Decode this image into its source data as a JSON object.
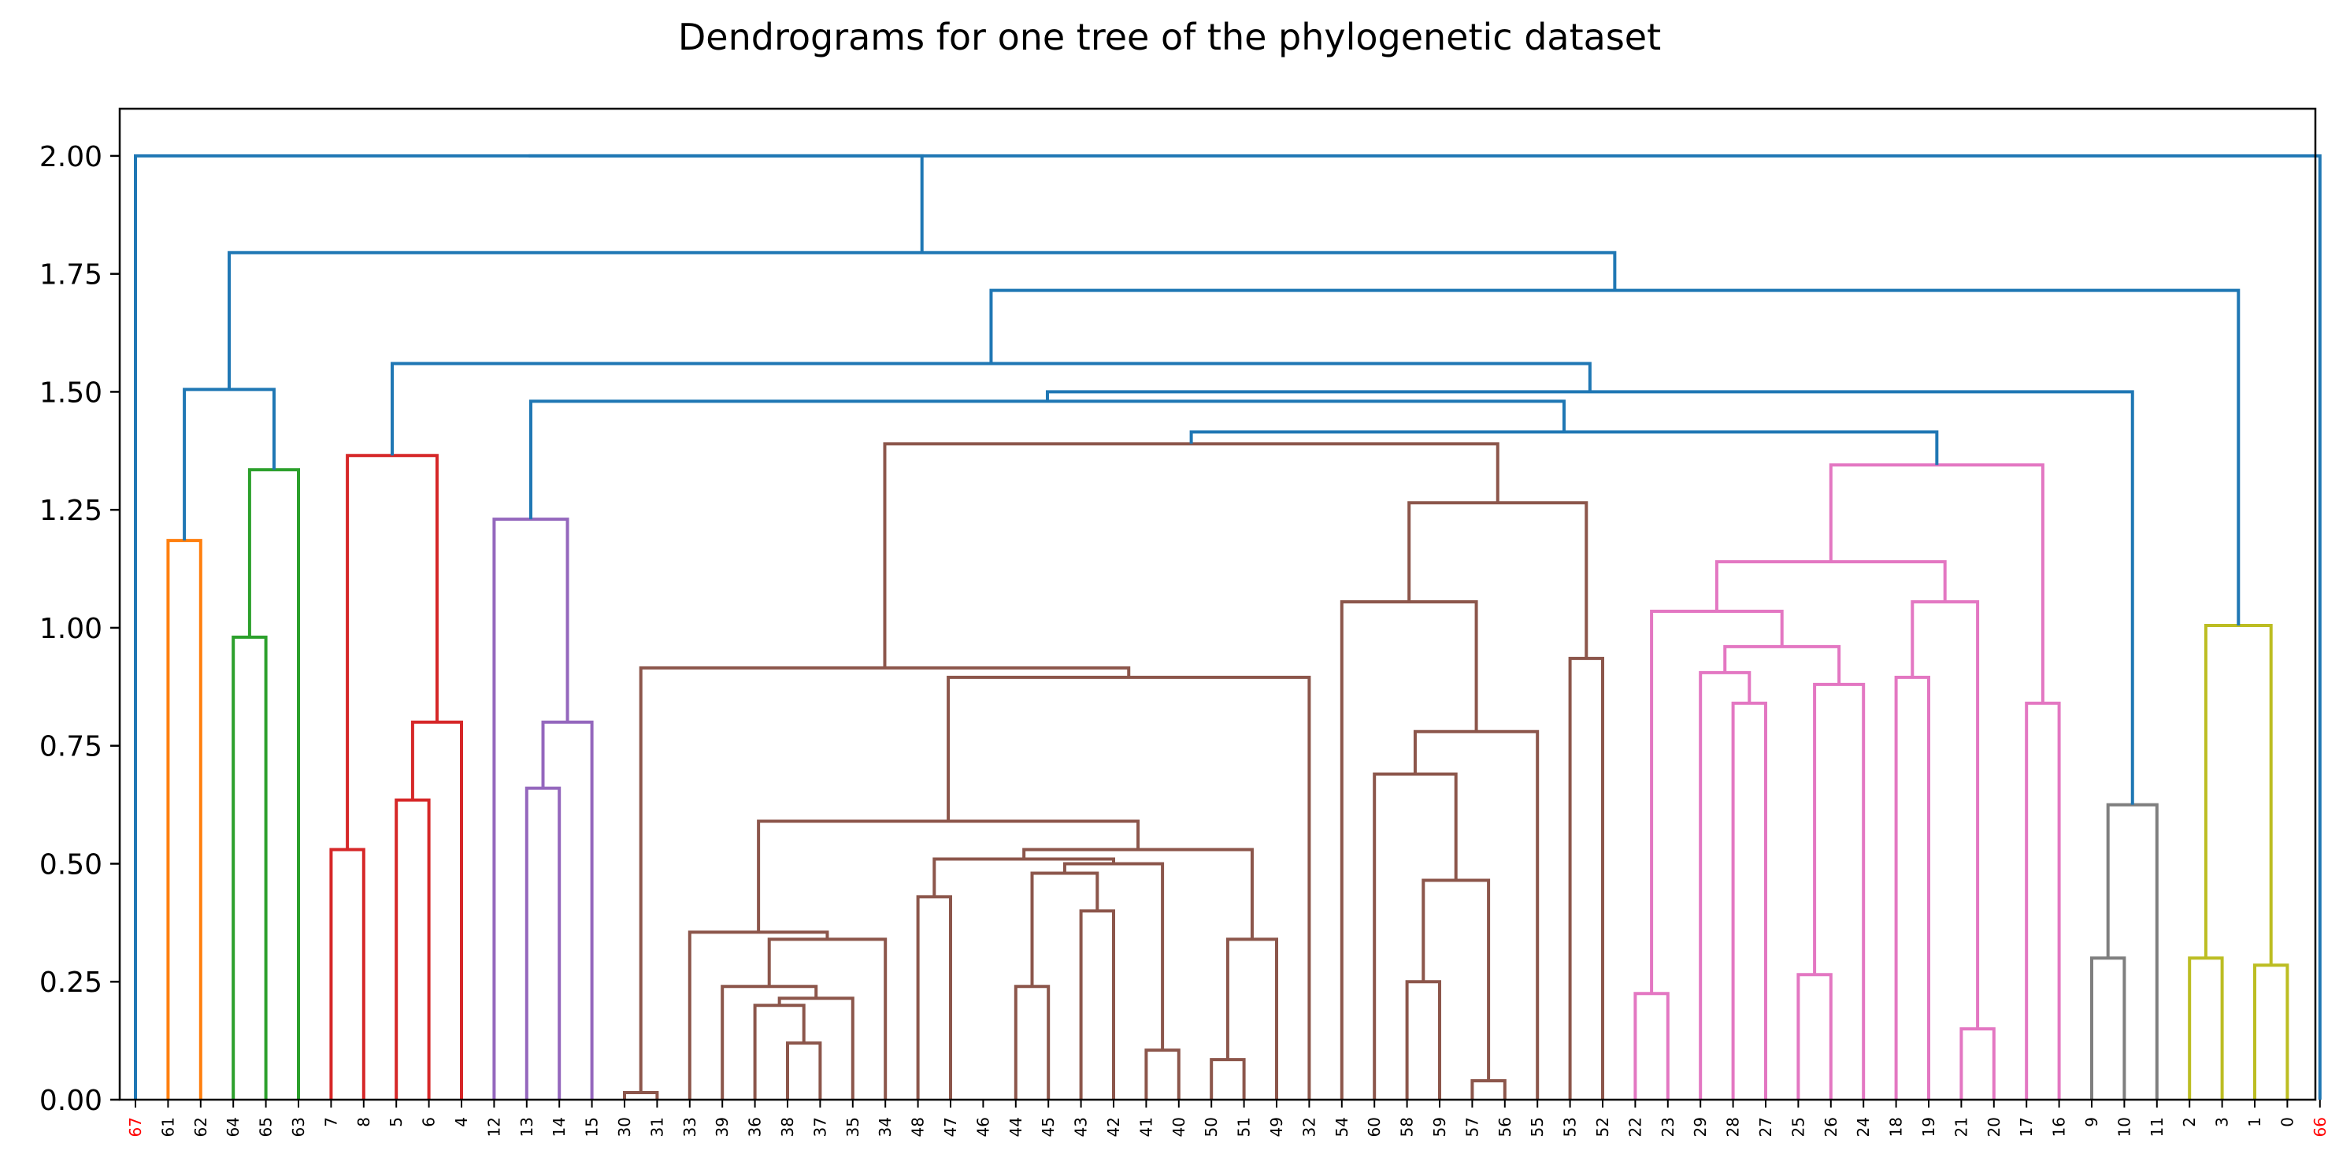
{
  "chart_data": {
    "type": "dendrogram",
    "title": "Dendrograms for one tree of the phylogenetic dataset",
    "ylim": [
      0,
      2.1
    ],
    "y_ticks": [
      "0.00",
      "0.25",
      "0.50",
      "0.75",
      "1.00",
      "1.25",
      "1.50",
      "1.75",
      "2.00"
    ],
    "leaves": [
      "67",
      "61",
      "62",
      "64",
      "65",
      "63",
      "7",
      "8",
      "5",
      "6",
      "4",
      "12",
      "13",
      "14",
      "15",
      "30",
      "31",
      "33",
      "39",
      "36",
      "38",
      "37",
      "35",
      "34",
      "48",
      "47",
      "46",
      "44",
      "45",
      "43",
      "42",
      "41",
      "40",
      "50",
      "51",
      "49",
      "32",
      "54",
      "60",
      "58",
      "59",
      "57",
      "56",
      "55",
      "53",
      "52",
      "22",
      "23",
      "29",
      "28",
      "27",
      "25",
      "26",
      "24",
      "18",
      "19",
      "21",
      "20",
      "17",
      "16",
      "9",
      "10",
      "11",
      "2",
      "3",
      "1",
      "0",
      "66"
    ],
    "highlighted_leaves": [
      "67",
      "66"
    ],
    "colors": {
      "C0": "#1f77b4",
      "C1": "#ff7f0e",
      "C2": "#2ca02c",
      "C3": "#d62728",
      "C4": "#9467bd",
      "C5": "#8c564b",
      "C6": "#e377c2",
      "C7": "#7f7f7f",
      "C8": "#bcbd22",
      "highlight": "#ff0000"
    },
    "merges": [
      {
        "a": "61",
        "b": "62",
        "height": 1.185,
        "color": "C1"
      },
      {
        "a": "64",
        "b": "65",
        "height": 0.98,
        "color": "C2"
      },
      {
        "a": "m1",
        "b": "63",
        "height": 1.335,
        "color": "C2"
      },
      {
        "a": "m0",
        "b": "m2",
        "height": 1.505,
        "color": "C0"
      },
      {
        "a": "7",
        "b": "8",
        "height": 0.53,
        "color": "C3"
      },
      {
        "a": "5",
        "b": "6",
        "height": 0.635,
        "color": "C3"
      },
      {
        "a": "m5",
        "b": "4",
        "height": 0.8,
        "color": "C3"
      },
      {
        "a": "m4",
        "b": "m6",
        "height": 1.365,
        "color": "C3"
      },
      {
        "a": "13",
        "b": "14",
        "height": 0.66,
        "color": "C4"
      },
      {
        "a": "m8",
        "b": "15",
        "height": 0.8,
        "color": "C4"
      },
      {
        "a": "12",
        "b": "m9",
        "height": 1.23,
        "color": "C4"
      },
      {
        "a": "30",
        "b": "31",
        "height": 0.015,
        "color": "C5"
      },
      {
        "a": "38",
        "b": "37",
        "height": 0.12,
        "color": "C5"
      },
      {
        "a": "36",
        "b": "m12",
        "height": 0.2,
        "color": "C5"
      },
      {
        "a": "m13",
        "b": "35",
        "height": 0.215,
        "color": "C5"
      },
      {
        "a": "39",
        "b": "m14",
        "height": 0.24,
        "color": "C5"
      },
      {
        "a": "m15",
        "b": "34",
        "height": 0.34,
        "color": "C5"
      },
      {
        "a": "33",
        "b": "m16",
        "height": 0.355,
        "color": "C5"
      },
      {
        "a": "48",
        "b": "47",
        "height": 0.43,
        "color": "C5"
      },
      {
        "a": "44",
        "b": "45",
        "height": 0.24,
        "color": "C5"
      },
      {
        "a": "43",
        "b": "42",
        "height": 0.4,
        "color": "C5"
      },
      {
        "a": "m19",
        "b": "m20",
        "height": 0.48,
        "color": "C5"
      },
      {
        "a": "41",
        "b": "40",
        "height": 0.105,
        "color": "C5"
      },
      {
        "a": "m21",
        "b": "m22",
        "height": 0.5,
        "color": "C5"
      },
      {
        "a": "m18_46",
        "b": "m23",
        "height": 0.51,
        "color": "C5"
      },
      {
        "a": "50",
        "b": "51",
        "height": 0.085,
        "color": "C5"
      },
      {
        "a": "m25",
        "b": "49",
        "height": 0.34,
        "color": "C5"
      },
      {
        "a": "m24",
        "b": "m26",
        "height": 0.53,
        "color": "C5"
      },
      {
        "a": "m17",
        "b": "m27",
        "height": 0.59,
        "color": "C5"
      },
      {
        "a": "m28",
        "b": "32",
        "height": 0.895,
        "color": "C5"
      },
      {
        "a": "m11",
        "b": "m29",
        "height": 0.915,
        "color": "C5"
      },
      {
        "a": "58",
        "b": "59",
        "height": 0.25,
        "color": "C5"
      },
      {
        "a": "57",
        "b": "56",
        "height": 0.04,
        "color": "C5"
      },
      {
        "a": "m31",
        "b": "m32",
        "height": 0.465,
        "color": "C5"
      },
      {
        "a": "60",
        "b": "m33",
        "height": 0.69,
        "color": "C5"
      },
      {
        "a": "m34",
        "b": "55",
        "height": 0.78,
        "color": "C5"
      },
      {
        "a": "54",
        "b": "m35",
        "height": 1.055,
        "color": "C5"
      },
      {
        "a": "53",
        "b": "52",
        "height": 0.935,
        "color": "C5"
      },
      {
        "a": "m36",
        "b": "m37",
        "height": 1.265,
        "color": "C5"
      },
      {
        "a": "m30",
        "b": "m38",
        "height": 1.39,
        "color": "C5"
      },
      {
        "a": "22",
        "b": "23",
        "height": 0.225,
        "color": "C6"
      },
      {
        "a": "28",
        "b": "27",
        "height": 0.84,
        "color": "C6"
      },
      {
        "a": "29",
        "b": "m41",
        "height": 0.905,
        "color": "C6"
      },
      {
        "a": "25",
        "b": "26",
        "height": 0.265,
        "color": "C6"
      },
      {
        "a": "m43",
        "b": "24",
        "height": 0.88,
        "color": "C6"
      },
      {
        "a": "m42",
        "b": "m44",
        "height": 0.96,
        "color": "C6"
      },
      {
        "a": "m40",
        "b": "m45",
        "height": 1.035,
        "color": "C6"
      },
      {
        "a": "21",
        "b": "20",
        "height": 0.15,
        "color": "C6"
      },
      {
        "a": "18",
        "b": "19",
        "height": 0.895,
        "color": "C6"
      },
      {
        "a": "m48",
        "b": "m47",
        "height": 1.055,
        "color": "C6"
      },
      {
        "a": "m46",
        "b": "m49",
        "height": 1.14,
        "color": "C6"
      },
      {
        "a": "17",
        "b": "16",
        "height": 0.84,
        "color": "C6"
      },
      {
        "a": "m50",
        "b": "m51",
        "height": 1.345,
        "color": "C6"
      },
      {
        "a": "m39",
        "b": "m52",
        "height": 1.415,
        "color": "C0"
      },
      {
        "a": "m10",
        "b": "m53",
        "height": 1.48,
        "color": "C0"
      },
      {
        "a": "9",
        "b": "10",
        "height": 0.3,
        "color": "C7"
      },
      {
        "a": "m55",
        "b": "11",
        "height": 0.625,
        "color": "C7"
      },
      {
        "a": "m54",
        "b": "m56",
        "height": 1.5,
        "color": "C0"
      },
      {
        "a": "m7",
        "b": "m57",
        "height": 1.56,
        "color": "C0"
      },
      {
        "a": "2",
        "b": "3",
        "height": 0.3,
        "color": "C8"
      },
      {
        "a": "1",
        "b": "0",
        "height": 0.285,
        "color": "C8"
      },
      {
        "a": "m59",
        "b": "m60",
        "height": 1.005,
        "color": "C8"
      },
      {
        "a": "m58",
        "b": "m61",
        "height": 1.715,
        "color": "C0"
      },
      {
        "a": "m3",
        "b": "m62",
        "height": 1.795,
        "color": "C0"
      },
      {
        "a": "67",
        "b": "m63",
        "height": 2.0,
        "color": "C0"
      },
      {
        "a": "m64",
        "b": "66",
        "height": 2.0,
        "color": "C0"
      }
    ]
  }
}
